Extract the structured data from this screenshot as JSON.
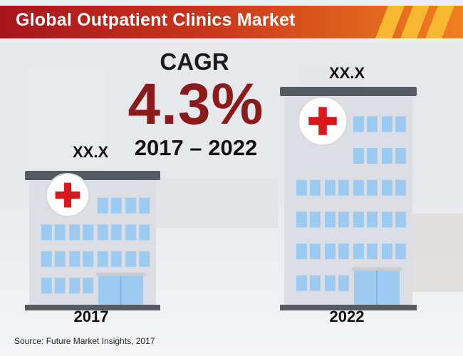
{
  "title": "Global Outpatient Clinics Market",
  "cagr": {
    "label": "CAGR",
    "value": "4.3%",
    "period": "2017 – 2022"
  },
  "source": "Source: Future Market Insights, 2017",
  "colors": {
    "banner_red": "#a8141b",
    "banner_orange": "#f0801e",
    "accent_yellow": "#f7b731",
    "cagr_value": "#8b1a1a",
    "building_body": "#dcdee4",
    "building_roof": "#555b63",
    "window": "#9ccaf0",
    "cross": "#d7191c"
  },
  "chart_data": {
    "type": "bar",
    "categories": [
      "2017",
      "2022"
    ],
    "value_labels": [
      "XX.X",
      "XX.X"
    ],
    "icon": "hospital-building-icon",
    "title": "Global Outpatient Clinics Market",
    "annotation": "CAGR 4.3% 2017 – 2022"
  }
}
